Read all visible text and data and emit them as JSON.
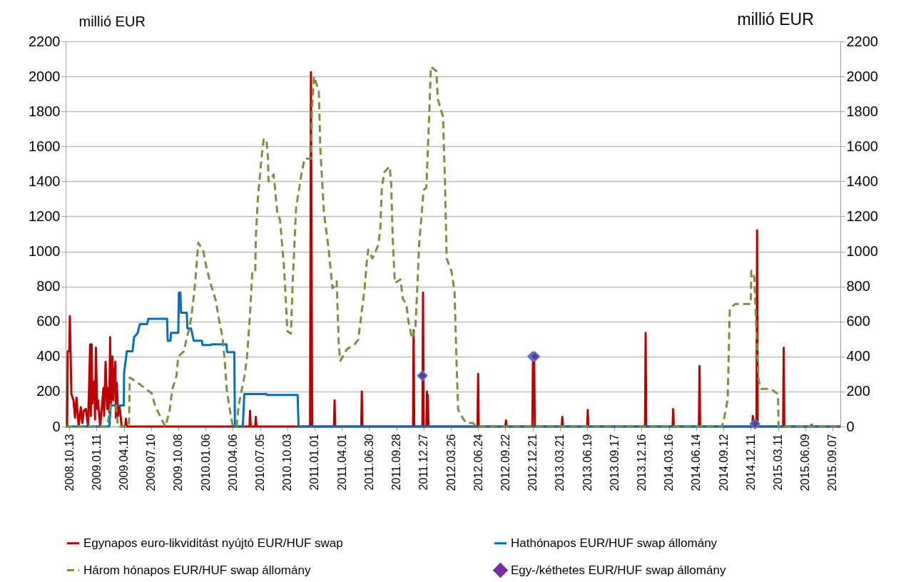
{
  "chart_data": {
    "type": "line",
    "ylabel": "millió EUR",
    "y2label": "millió EUR",
    "xlim": [
      "2008-10-01",
      "2015-10-03"
    ],
    "xticks": [
      {
        "value": "2008-10-13",
        "label": "2008.10.13"
      },
      {
        "value": "2009-01-11",
        "label": "2009.01.11"
      },
      {
        "value": "2009-04-11",
        "label": "2009.04.11"
      },
      {
        "value": "2009-07-10",
        "label": "2009.07.10"
      },
      {
        "value": "2009-10-08",
        "label": "2009.10.08"
      },
      {
        "value": "2010-01-06",
        "label": "2010.01.06"
      },
      {
        "value": "2010-04-06",
        "label": "2010.04.06"
      },
      {
        "value": "2010-07-05",
        "label": "2010.07.05"
      },
      {
        "value": "2010-10-03",
        "label": "2010.10.03"
      },
      {
        "value": "2011-01-01",
        "label": "2011.01.01"
      },
      {
        "value": "2011-04-01",
        "label": "2011.04.01"
      },
      {
        "value": "2011-06-30",
        "label": "2011.06.30"
      },
      {
        "value": "2011-09-28",
        "label": "2011.09.28"
      },
      {
        "value": "2011-12-27",
        "label": "2011.12.27"
      },
      {
        "value": "2012-03-26",
        "label": "2012.03.26"
      },
      {
        "value": "2012-06-24",
        "label": "2012.06.24"
      },
      {
        "value": "2012-09-22",
        "label": "2012.09.22"
      },
      {
        "value": "2012-12-21",
        "label": "2012.12.21"
      },
      {
        "value": "2013-03-21",
        "label": "2013.03.21"
      },
      {
        "value": "2013-06-19",
        "label": "2013.06.19"
      },
      {
        "value": "2013-09-17",
        "label": "2013.09.17"
      },
      {
        "value": "2013-12-16",
        "label": "2013.12.16"
      },
      {
        "value": "2014-03-16",
        "label": "2014.03.16"
      },
      {
        "value": "2014-06-14",
        "label": "2014.06.14"
      },
      {
        "value": "2014-09-12",
        "label": "2014.09.12"
      },
      {
        "value": "2014-12-11",
        "label": "2014.12.11"
      },
      {
        "value": "2015-03-11",
        "label": "2015.03.11"
      },
      {
        "value": "2015-06-09",
        "label": "2015.06.09"
      },
      {
        "value": "2015-09-07",
        "label": "2015.09.07"
      }
    ],
    "ylim": [
      0,
      2200
    ],
    "yticks": [
      0,
      200,
      400,
      600,
      800,
      1000,
      1200,
      1400,
      1600,
      1800,
      2000,
      2200
    ],
    "y2lim": [
      0,
      2200
    ],
    "y2ticks": [
      0,
      200,
      400,
      600,
      800,
      1000,
      1200,
      1400,
      1600,
      1800,
      2000,
      2200
    ],
    "grid": "y",
    "legend": "bottom",
    "series": [
      {
        "name": "Egynapos euro-likviditást nyújtó EUR/HUF swap",
        "color": "#c00000",
        "line_style": "solid",
        "marker": "none",
        "x": [
          "2008-10-01",
          "2008-10-06",
          "2008-10-08",
          "2008-10-13",
          "2008-10-15",
          "2008-10-20",
          "2008-10-27",
          "2008-11-01",
          "2008-11-06",
          "2008-11-13",
          "2008-11-20",
          "2008-11-25",
          "2008-11-30",
          "2008-12-07",
          "2008-12-14",
          "2008-12-21",
          "2008-12-23",
          "2008-12-26",
          "2008-12-28",
          "2009-01-04",
          "2009-01-06",
          "2009-01-09",
          "2009-01-13",
          "2009-01-16",
          "2009-01-23",
          "2009-02-03",
          "2009-02-05",
          "2009-02-10",
          "2009-02-15",
          "2009-02-17",
          "2009-02-22",
          "2009-02-25",
          "2009-02-27",
          "2009-03-04",
          "2009-03-07",
          "2009-03-09",
          "2009-03-14",
          "2009-03-16",
          "2009-03-19",
          "2009-03-23",
          "2009-03-28",
          "2009-04-04",
          "2009-04-16",
          "2009-04-18",
          "2009-04-21",
          "2010-05-31",
          "2010-06-02",
          "2010-06-04",
          "2010-06-19",
          "2010-06-21",
          "2010-06-23",
          "2010-12-17",
          "2010-12-20",
          "2010-12-24",
          "2011-03-06",
          "2011-03-08",
          "2011-03-10",
          "2011-06-04",
          "2011-06-06",
          "2011-06-08",
          "2011-11-22",
          "2011-11-24",
          "2011-11-26",
          "2011-12-23",
          "2011-12-25",
          "2011-12-27",
          "2012-01-05",
          "2012-01-07",
          "2012-01-08",
          "2012-01-10",
          "2012-01-12",
          "2012-06-22",
          "2012-06-24",
          "2012-06-26",
          "2012-09-22",
          "2012-09-24",
          "2012-09-26",
          "2012-12-20",
          "2012-12-22",
          "2012-12-26",
          "2012-12-28",
          "2013-03-27",
          "2013-03-29",
          "2013-03-31",
          "2013-06-19",
          "2013-06-21",
          "2013-06-23",
          "2013-12-27",
          "2013-12-29",
          "2013-12-31",
          "2014-03-28",
          "2014-03-30",
          "2014-04-01",
          "2014-06-23",
          "2014-06-25",
          "2014-06-27",
          "2014-12-16",
          "2014-12-18",
          "2014-12-20",
          "2014-12-30",
          "2015-01-01",
          "2015-01-03",
          "2015-03-28",
          "2015-03-30",
          "2015-04-01",
          "2015-06-28",
          "2015-06-30",
          "2015-07-02",
          "2015-10-03"
        ],
        "values": [
          0,
          0,
          430,
          430,
          630,
          185,
          150,
          50,
          165,
          0,
          110,
          20,
          90,
          100,
          0,
          470,
          60,
          470,
          130,
          260,
          40,
          450,
          100,
          150,
          0,
          220,
          60,
          370,
          100,
          220,
          80,
          510,
          120,
          400,
          150,
          260,
          370,
          50,
          250,
          60,
          120,
          0,
          0,
          45,
          0,
          0,
          90,
          0,
          0,
          55,
          0,
          0,
          2025,
          0,
          0,
          150,
          0,
          0,
          200,
          0,
          0,
          550,
          0,
          0,
          765,
          0,
          0,
          200,
          0,
          180,
          0,
          0,
          300,
          0,
          0,
          35,
          0,
          0,
          400,
          400,
          0,
          0,
          55,
          0,
          0,
          95,
          0,
          0,
          535,
          0,
          0,
          100,
          0,
          0,
          345,
          0,
          0,
          60,
          0,
          0,
          1120,
          0,
          0,
          450,
          0,
          0,
          10,
          0,
          0
        ]
      },
      {
        "name": "Hathónapos EUR/HUF swap állomány",
        "color": "#0070c0",
        "line_style": "solid",
        "marker": "none",
        "x": [
          "2008-10-01",
          "2009-02-22",
          "2009-02-27",
          "2009-04-11",
          "2009-04-12",
          "2009-04-21",
          "2009-05-10",
          "2009-05-15",
          "2009-05-27",
          "2009-06-03",
          "2009-06-27",
          "2009-07-01",
          "2009-09-01",
          "2009-09-03",
          "2009-09-12",
          "2009-09-14",
          "2009-10-08",
          "2009-10-10",
          "2009-10-15",
          "2009-10-17",
          "2009-11-05",
          "2009-11-07",
          "2009-11-19",
          "2009-11-28",
          "2009-12-25",
          "2009-12-27",
          "2010-01-22",
          "2010-01-27",
          "2010-03-16",
          "2010-03-18",
          "2010-04-11",
          "2010-04-13",
          "2010-05-09",
          "2010-05-14",
          "2010-07-26",
          "2010-07-28",
          "2010-11-06",
          "2010-11-09",
          "2015-10-03"
        ],
        "values": [
          0,
          0,
          120,
          120,
          305,
          430,
          430,
          510,
          535,
          585,
          585,
          615,
          615,
          490,
          490,
          535,
          535,
          765,
          765,
          650,
          650,
          560,
          560,
          490,
          490,
          465,
          465,
          470,
          470,
          425,
          425,
          0,
          0,
          185,
          185,
          180,
          180,
          0,
          0
        ]
      },
      {
        "name": "Három hónapos EUR/HUF swap állomány",
        "color": "#77933c",
        "line_style": "dashed",
        "marker": "none",
        "x": [
          "2008-10-01",
          "2009-02-15",
          "2009-02-27",
          "2009-03-16",
          "2009-03-23",
          "2009-04-28",
          "2009-05-01",
          "2009-05-23",
          "2009-07-12",
          "2009-07-24",
          "2009-08-26",
          "2009-09-09",
          "2009-09-18",
          "2009-10-02",
          "2009-10-08",
          "2009-10-27",
          "2009-11-05",
          "2009-11-12",
          "2009-11-19",
          "2009-11-29",
          "2009-12-06",
          "2009-12-13",
          "2009-12-30",
          "2010-01-08",
          "2010-01-22",
          "2010-02-08",
          "2010-02-19",
          "2010-03-03",
          "2010-03-10",
          "2010-03-17",
          "2010-03-29",
          "2010-04-06",
          "2010-04-18",
          "2010-04-25",
          "2010-05-02",
          "2010-05-16",
          "2010-05-23",
          "2010-06-02",
          "2010-06-09",
          "2010-06-19",
          "2010-06-21",
          "2010-06-28",
          "2010-07-05",
          "2010-07-10",
          "2010-07-17",
          "2010-07-26",
          "2010-07-31",
          "2010-08-02",
          "2010-08-19",
          "2010-08-31",
          "2010-09-09",
          "2010-09-21",
          "2010-09-26",
          "2010-10-03",
          "2010-10-15",
          "2010-10-20",
          "2010-11-01",
          "2010-11-20",
          "2010-11-29",
          "2010-12-21",
          "2010-12-23",
          "2010-12-30",
          "2011-01-15",
          "2011-01-20",
          "2011-01-27",
          "2011-02-01",
          "2011-02-17",
          "2011-03-01",
          "2011-03-08",
          "2011-03-15",
          "2011-03-22",
          "2011-03-27",
          "2011-04-17",
          "2011-05-13",
          "2011-05-25",
          "2011-06-15",
          "2011-06-22",
          "2011-06-27",
          "2011-07-11",
          "2011-07-30",
          "2011-08-06",
          "2011-08-11",
          "2011-08-20",
          "2011-09-06",
          "2011-09-11",
          "2011-09-16",
          "2011-09-23",
          "2011-10-12",
          "2011-10-19",
          "2011-10-31",
          "2011-11-07",
          "2011-11-19",
          "2011-11-30",
          "2011-12-07",
          "2011-12-12",
          "2011-12-27",
          "2012-01-05",
          "2012-01-10",
          "2012-01-15",
          "2012-01-20",
          "2012-02-07",
          "2012-02-12",
          "2012-02-24",
          "2012-02-29",
          "2012-03-07",
          "2012-03-12",
          "2012-03-28",
          "2012-04-07",
          "2012-04-14",
          "2012-04-19",
          "2012-04-28",
          "2012-05-15",
          "2012-06-07",
          "2012-06-17",
          "2014-09-07",
          "2014-09-14",
          "2014-09-26",
          "2014-10-01",
          "2014-10-03",
          "2014-10-20",
          "2014-12-11",
          "2014-12-13",
          "2014-12-23",
          "2014-12-25",
          "2014-12-30",
          "2015-01-06",
          "2015-01-15",
          "2015-02-15",
          "2015-03-11",
          "2015-03-13",
          "2015-10-03"
        ],
        "values": [
          0,
          0,
          125,
          120,
          0,
          0,
          280,
          255,
          190,
          115,
          0,
          85,
          210,
          290,
          400,
          430,
          510,
          550,
          615,
          755,
          890,
          1050,
          1000,
          915,
          820,
          725,
          615,
          510,
          385,
          210,
          75,
          0,
          0,
          115,
          180,
          300,
          400,
          645,
          875,
          875,
          1080,
          1310,
          1440,
          1540,
          1640,
          1640,
          1540,
          1400,
          1440,
          1220,
          1180,
          935,
          790,
          545,
          530,
          790,
          1250,
          1455,
          1530,
          1530,
          1800,
          2000,
          1915,
          1585,
          1370,
          1220,
          1005,
          790,
          800,
          830,
          460,
          375,
          440,
          470,
          495,
          785,
          935,
          1010,
          960,
          1035,
          1130,
          1365,
          1455,
          1485,
          1380,
          1075,
          820,
          840,
          730,
          700,
          600,
          500,
          570,
          820,
          1035,
          1350,
          1365,
          1580,
          1800,
          2055,
          2030,
          1870,
          1800,
          1770,
          1365,
          960,
          885,
          775,
          355,
          95,
          65,
          20,
          20,
          0,
          0,
          45,
          155,
          535,
          670,
          700,
          700,
          890,
          850,
          755,
          535,
          265,
          215,
          215,
          185,
          0,
          0
        ]
      },
      {
        "name": "Egy-/kéthetes EUR/HUF swap állomány",
        "type": "scatter",
        "axis": "y2",
        "color": "#7030a0",
        "marker": "diamond",
        "x": [
          "2011-12-23",
          "2012-12-21",
          "2012-12-28",
          "2014-12-25"
        ],
        "values": [
          290,
          400,
          400,
          15
        ]
      }
    ]
  }
}
